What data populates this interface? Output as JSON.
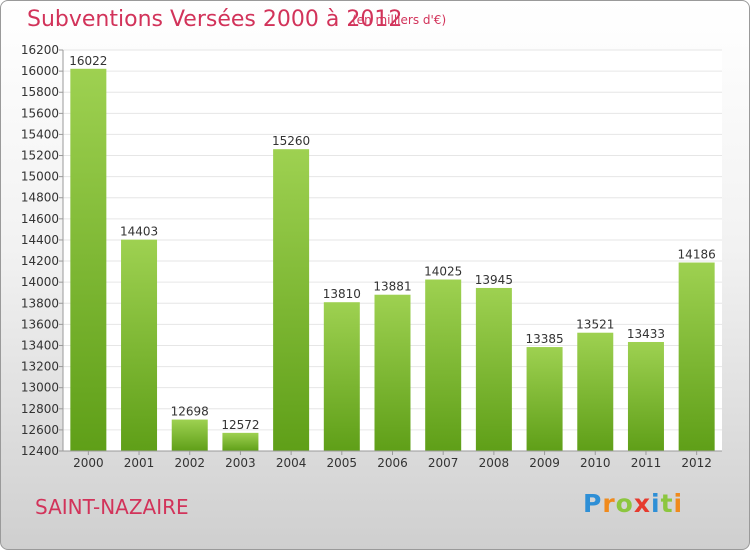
{
  "header": {
    "title": "Subventions Versées 2000 à 2012",
    "subtitle": "(en milliers d'€)"
  },
  "footer": {
    "city": "SAINT-NAZAIRE",
    "logo_letters": [
      "P",
      "r",
      "o",
      "x",
      "i",
      "t",
      "i"
    ],
    "logo_colors": [
      "#2e8fd6",
      "#f08a1c",
      "#8cc63f",
      "#e63a2e",
      "#2e8fd6",
      "#8cc63f",
      "#f08a1c"
    ]
  },
  "chart_data": {
    "type": "bar",
    "title": "Subventions Versées 2000 à 2012",
    "subtitle": "(en milliers d'€)",
    "categories": [
      "2000",
      "2001",
      "2002",
      "2003",
      "2004",
      "2005",
      "2006",
      "2007",
      "2008",
      "2009",
      "2010",
      "2011",
      "2012"
    ],
    "values": [
      16022,
      14403,
      12698,
      12572,
      15260,
      13810,
      13881,
      14025,
      13945,
      13385,
      13521,
      13433,
      14186
    ],
    "ylim": [
      12400,
      16200
    ],
    "yticks": [
      12400,
      12600,
      12800,
      13000,
      13200,
      13400,
      13600,
      13800,
      14000,
      14200,
      14400,
      14600,
      14800,
      15000,
      15200,
      15400,
      15600,
      15800,
      16000,
      16200
    ],
    "grid": true,
    "colors": {
      "bar_top": "#9ed151",
      "bar_bottom": "#5f9f18",
      "grid": "#e6e6e6",
      "axis": "#9a9a9a",
      "text": "#333333"
    }
  }
}
